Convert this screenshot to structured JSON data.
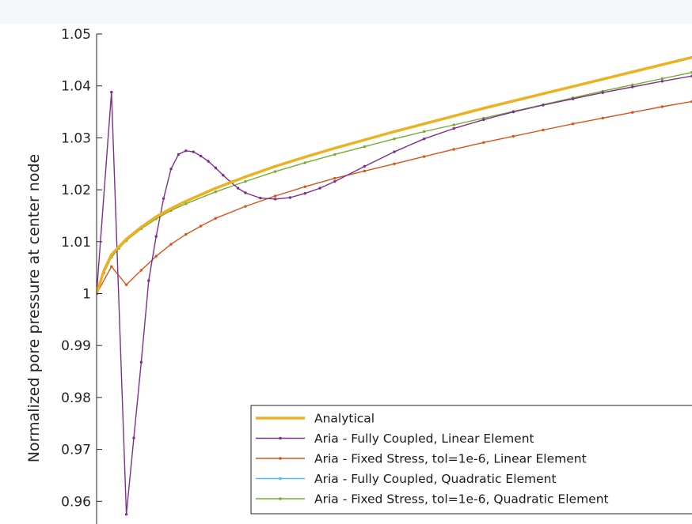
{
  "chart_data": {
    "type": "line",
    "title": "",
    "xlabel": "",
    "ylabel": "Normalized pore pressure at center node",
    "ylim": [
      0.955,
      1.05
    ],
    "xlim": [
      0,
      40
    ],
    "yticks": [
      0.96,
      0.97,
      0.98,
      0.99,
      1,
      1.01,
      1.02,
      1.03,
      1.04,
      1.05
    ],
    "ytick_labels": [
      "0.96",
      "0.97",
      "0.98",
      "0.99",
      "1",
      "1.01",
      "1.02",
      "1.03",
      "1.04",
      "1.05"
    ],
    "grid": false,
    "legend_position": "bottom-right",
    "series": [
      {
        "name": "Analytical",
        "color": "#EDB120",
        "marker": "none",
        "x": [
          0,
          0.5,
          1,
          1.5,
          2,
          3,
          4,
          5,
          6,
          8,
          10,
          12,
          14,
          16,
          18,
          20,
          22,
          24,
          26,
          28,
          30,
          32,
          34,
          36,
          38,
          40
        ],
        "y": [
          1.0,
          1.0045,
          1.0075,
          1.009,
          1.0105,
          1.0128,
          1.0148,
          1.0164,
          1.0178,
          1.0203,
          1.0225,
          1.0245,
          1.0263,
          1.028,
          1.0296,
          1.0312,
          1.0327,
          1.0342,
          1.0357,
          1.0371,
          1.0385,
          1.0399,
          1.0413,
          1.0427,
          1.0441,
          1.0455
        ]
      },
      {
        "name": "Aria - Fully Coupled, Linear Element",
        "color": "#7E2F8E",
        "marker": "dot",
        "x": [
          0,
          1,
          2,
          2.5,
          3,
          3.5,
          4,
          4.5,
          5,
          5.5,
          6,
          6.5,
          7,
          7.5,
          8,
          8.5,
          9,
          9.5,
          10,
          11,
          12,
          13,
          14,
          15,
          16,
          18,
          20,
          22,
          24,
          26,
          28,
          30,
          32,
          34,
          36,
          38,
          40
        ],
        "y": [
          1.0,
          1.0388,
          0.9575,
          0.9722,
          0.9868,
          1.0025,
          1.011,
          1.0183,
          1.024,
          1.0268,
          1.0275,
          1.0273,
          1.0265,
          1.0255,
          1.0242,
          1.0228,
          1.0215,
          1.0203,
          1.0194,
          1.0184,
          1.0182,
          1.0185,
          1.0193,
          1.0203,
          1.0216,
          1.0245,
          1.0273,
          1.0298,
          1.0318,
          1.0335,
          1.035,
          1.0363,
          1.0375,
          1.0387,
          1.0398,
          1.0409,
          1.0419
        ]
      },
      {
        "name": "Aria - Fixed Stress, tol=1e-6, Linear Element",
        "color": "#D95319",
        "marker": "dot",
        "x": [
          0,
          1,
          2,
          3,
          4,
          5,
          6,
          7,
          8,
          10,
          12,
          14,
          16,
          18,
          20,
          22,
          24,
          26,
          28,
          30,
          32,
          34,
          36,
          38,
          40
        ],
        "y": [
          1.0,
          1.0052,
          1.0017,
          1.0045,
          1.0072,
          1.0095,
          1.0114,
          1.013,
          1.0145,
          1.0168,
          1.0188,
          1.0206,
          1.0222,
          1.0236,
          1.025,
          1.0264,
          1.0278,
          1.0291,
          1.0303,
          1.0315,
          1.0327,
          1.0338,
          1.0349,
          1.036,
          1.037
        ]
      },
      {
        "name": "Aria - Fully Coupled, Quadratic Element",
        "color": "#4DBEEE",
        "marker": "dot",
        "x": [
          0,
          0.5,
          1,
          1.5,
          2,
          3,
          4,
          5,
          6,
          8,
          10,
          12,
          14,
          16,
          18,
          20,
          22,
          24,
          26,
          28,
          30,
          32,
          34,
          36,
          38,
          40
        ],
        "y": [
          1.0,
          1.0045,
          1.0075,
          1.009,
          1.0105,
          1.0128,
          1.0148,
          1.0164,
          1.0178,
          1.0203,
          1.0225,
          1.0245,
          1.0263,
          1.028,
          1.0296,
          1.0312,
          1.0327,
          1.0342,
          1.0357,
          1.0371,
          1.0385,
          1.0399,
          1.0413,
          1.0427,
          1.0441,
          1.0455
        ]
      },
      {
        "name": "Aria - Fixed Stress, tol=1e-6, Quadratic Element",
        "color": "#77AC30",
        "marker": "dot",
        "x": [
          0,
          0.5,
          1,
          1.5,
          2,
          3,
          4,
          5,
          6,
          8,
          10,
          12,
          14,
          16,
          18,
          20,
          22,
          24,
          26,
          28,
          30,
          32,
          34,
          36,
          38,
          40
        ],
        "y": [
          1.0,
          1.004,
          1.007,
          1.0087,
          1.0102,
          1.0125,
          1.0144,
          1.016,
          1.0173,
          1.0196,
          1.0216,
          1.0235,
          1.0252,
          1.0268,
          1.0283,
          1.0298,
          1.0312,
          1.0325,
          1.0338,
          1.0351,
          1.0364,
          1.0377,
          1.039,
          1.0402,
          1.0414,
          1.0426
        ]
      }
    ]
  }
}
